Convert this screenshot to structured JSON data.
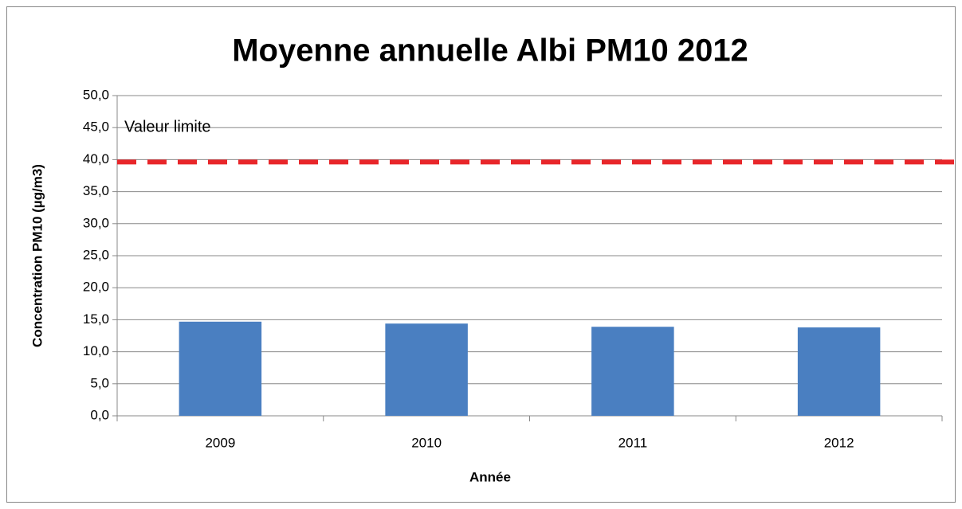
{
  "chart_data": {
    "type": "bar",
    "title": "Moyenne annuelle Albi PM10 2012",
    "x_label": "Année",
    "y_label": "Concentration PM10 (µg/m3)",
    "categories": [
      "2009",
      "2010",
      "2011",
      "2012"
    ],
    "values": [
      14.7,
      14.4,
      13.9,
      13.8
    ],
    "color": "#4a7fc1",
    "ylim": [
      0,
      50
    ],
    "yticks": [
      {
        "value": 0,
        "label": "0,0"
      },
      {
        "value": 5,
        "label": "5,0"
      },
      {
        "value": 10,
        "label": "10,0"
      },
      {
        "value": 15,
        "label": "15,0"
      },
      {
        "value": 20,
        "label": "20,0"
      },
      {
        "value": 25,
        "label": "25,0"
      },
      {
        "value": 30,
        "label": "30,0"
      },
      {
        "value": 35,
        "label": "35,0"
      },
      {
        "value": 40,
        "label": "40,0"
      },
      {
        "value": 45,
        "label": "45,0"
      },
      {
        "value": 50,
        "label": "50,0"
      }
    ],
    "grid": true,
    "reference_line": {
      "value": 40,
      "label": "Valeur limite",
      "color": "#e8262a"
    }
  }
}
